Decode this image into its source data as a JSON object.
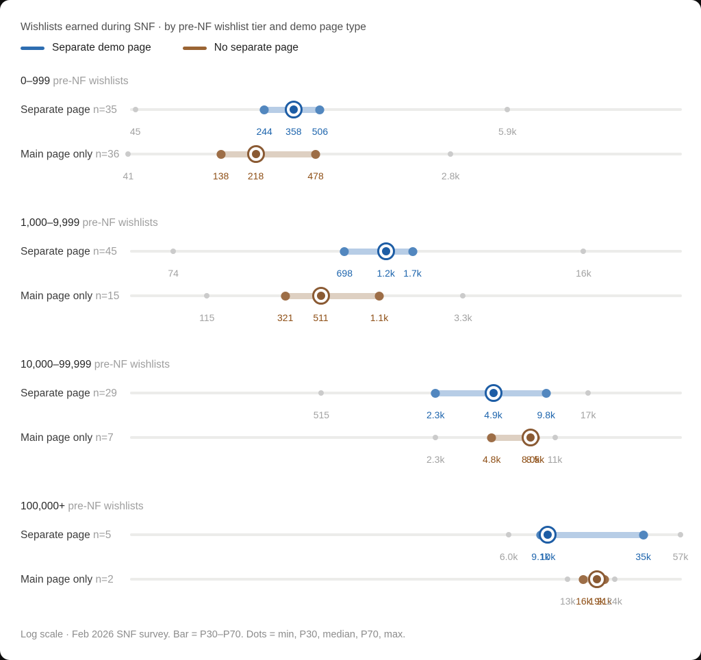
{
  "title": "Wishlists earned during SNF · by pre-NF wishlist tier and demo page type",
  "legend": [
    {
      "id": "separate",
      "label": "Separate demo page"
    },
    {
      "id": "main",
      "label": "No separate page"
    }
  ],
  "footer": "Log scale · Feb 2026 SNF survey. Bar = P30–P70. Dots = min, P30, median, P70, max.",
  "chart_data": {
    "type": "dot-range",
    "scale": {
      "type": "log",
      "min": 42,
      "max": 58000
    },
    "tier_suffix": "pre-NF wishlists",
    "colors": {
      "separate": {
        "swatch": "#2d6db1",
        "dot": "#5287bf",
        "median": "#1d5da5",
        "bar": "#b7cde6",
        "label": "#1e65ad"
      },
      "main": {
        "swatch": "#9a6433",
        "dot": "#9d6e47",
        "median": "#8a5a33",
        "bar": "#ded0c2",
        "label": "#8e4f16"
      },
      "minmax_dot": "#cbcbcb",
      "minmax_label": "#a2a2a2",
      "track": "#ececea"
    },
    "sections": [
      {
        "tier": "0–999",
        "rows": [
          {
            "label": "Separate page",
            "n": "n=35",
            "series": "separate",
            "values": {
              "min": 45,
              "p30": 244,
              "median": 358,
              "p70": 506,
              "max": 5900
            },
            "labels": {
              "min": "45",
              "p30": "244",
              "median": "358",
              "p70": "506",
              "max": "5.9k"
            }
          },
          {
            "label": "Main page only",
            "n": "n=36",
            "series": "main",
            "values": {
              "min": 41,
              "p30": 138,
              "median": 218,
              "p70": 478,
              "max": 2800
            },
            "labels": {
              "min": "41",
              "p30": "138",
              "median": "218",
              "p70": "478",
              "max": "2.8k"
            }
          }
        ]
      },
      {
        "tier": "1,000–9,999",
        "rows": [
          {
            "label": "Separate page",
            "n": "n=45",
            "series": "separate",
            "values": {
              "min": 74,
              "p30": 698,
              "median": 1200,
              "p70": 1700,
              "max": 16000
            },
            "labels": {
              "min": "74",
              "p30": "698",
              "median": "1.2k",
              "p70": "1.7k",
              "max": "16k"
            }
          },
          {
            "label": "Main page only",
            "n": "n=15",
            "series": "main",
            "values": {
              "min": 115,
              "p30": 321,
              "median": 511,
              "p70": 1100,
              "max": 3300
            },
            "labels": {
              "min": "115",
              "p30": "321",
              "median": "511",
              "p70": "1.1k",
              "max": "3.3k"
            }
          }
        ]
      },
      {
        "tier": "10,000–99,999",
        "rows": [
          {
            "label": "Separate page",
            "n": "n=29",
            "series": "separate",
            "values": {
              "min": 515,
              "p30": 2300,
              "median": 4900,
              "p70": 9800,
              "max": 17000
            },
            "labels": {
              "min": "515",
              "p30": "2.3k",
              "median": "4.9k",
              "p70": "9.8k",
              "max": "17k"
            }
          },
          {
            "label": "Main page only",
            "n": "n=7",
            "series": "main",
            "values": {
              "min": 2300,
              "p30": 4800,
              "median": 8000,
              "p70": 8500,
              "max": 11000
            },
            "labels": {
              "min": "2.3k",
              "p30": "4.8k",
              "median": "8.0k",
              "p70": "8.5k",
              "max": "11k"
            }
          }
        ]
      },
      {
        "tier": "100,000+",
        "rows": [
          {
            "label": "Separate page",
            "n": "n=5",
            "series": "separate",
            "values": {
              "min": 6000,
              "p30": 9100,
              "median": 10000,
              "p70": 35000,
              "max": 57000
            },
            "labels": {
              "min": "6.0k",
              "p30": "9.1k",
              "median": "10k",
              "p70": "35k",
              "max": "57k"
            }
          },
          {
            "label": "Main page only",
            "n": "n=2",
            "series": "main",
            "values": {
              "min": 13000,
              "p30": 16000,
              "median": 19000,
              "p70": 21000,
              "max": 24000
            },
            "labels": {
              "min": "13k",
              "p30": "16k",
              "median": "19k",
              "p70": "21k",
              "max": "24k"
            }
          }
        ]
      }
    ]
  }
}
